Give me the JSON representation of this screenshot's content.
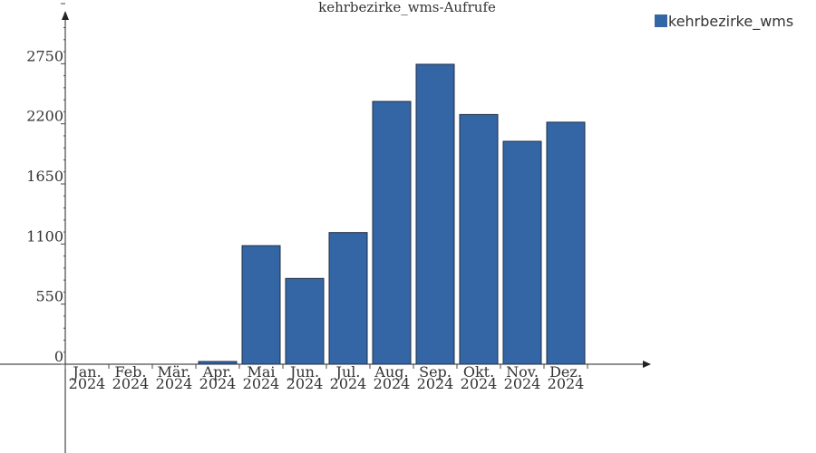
{
  "chart_data": {
    "type": "bar",
    "title": "kehrbezirke_wms-Aufrufe",
    "xlabel": "",
    "ylabel": "",
    "categories": [
      [
        "Jan.",
        "2024"
      ],
      [
        "Feb.",
        "2024"
      ],
      [
        "Mär.",
        "2024"
      ],
      [
        "Apr.",
        "2024"
      ],
      [
        "Mai",
        "2024"
      ],
      [
        "Jun.",
        "2024"
      ],
      [
        "Jul.",
        "2024"
      ],
      [
        "Aug.",
        "2024"
      ],
      [
        "Sep.",
        "2024"
      ],
      [
        "Okt.",
        "2024"
      ],
      [
        "Nov.",
        "2024"
      ],
      [
        "Dez.",
        "2024"
      ]
    ],
    "series": [
      {
        "name": "kehrbezirke_wms",
        "color": "#3465a4",
        "values": [
          0,
          0,
          0,
          25,
          1085,
          785,
          1205,
          2405,
          2745,
          2285,
          2040,
          2215
        ]
      }
    ],
    "y_ticks": [
      "0",
      "550",
      "1100",
      "1650",
      "2200",
      "2750"
    ],
    "ylim": [
      0,
      3300
    ],
    "grid": false,
    "legend_position": "top-right"
  }
}
